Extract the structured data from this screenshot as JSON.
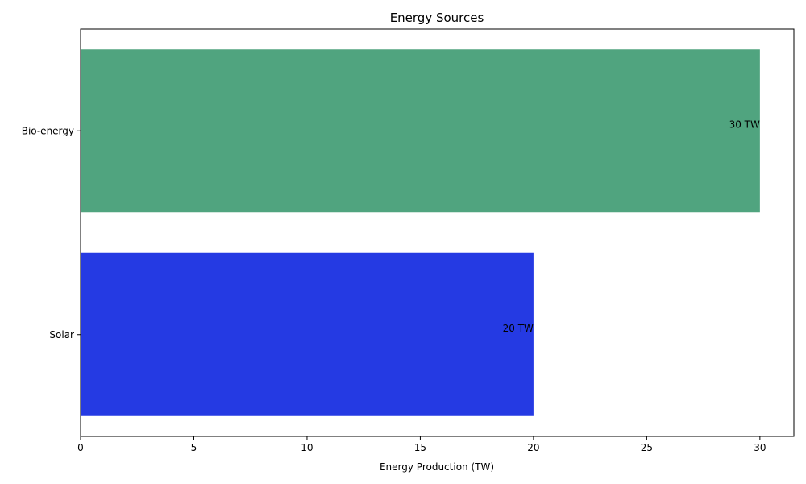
{
  "chart_data": {
    "type": "bar",
    "orientation": "horizontal",
    "title": "Energy Sources",
    "xlabel": "Energy Production (TW)",
    "ylabel": "",
    "categories": [
      "Bio-energy",
      "Solar"
    ],
    "values": [
      30,
      20
    ],
    "data_labels": [
      "30 TW",
      "20 TW"
    ],
    "colors": [
      "#50a47f",
      "#253ae3"
    ],
    "xlim": [
      0,
      31.5
    ],
    "xticks": [
      0,
      5,
      10,
      15,
      20,
      25,
      30
    ],
    "xtick_labels": [
      "0",
      "5",
      "10",
      "15",
      "20",
      "25",
      "30"
    ],
    "grid": false,
    "legend": "none"
  }
}
